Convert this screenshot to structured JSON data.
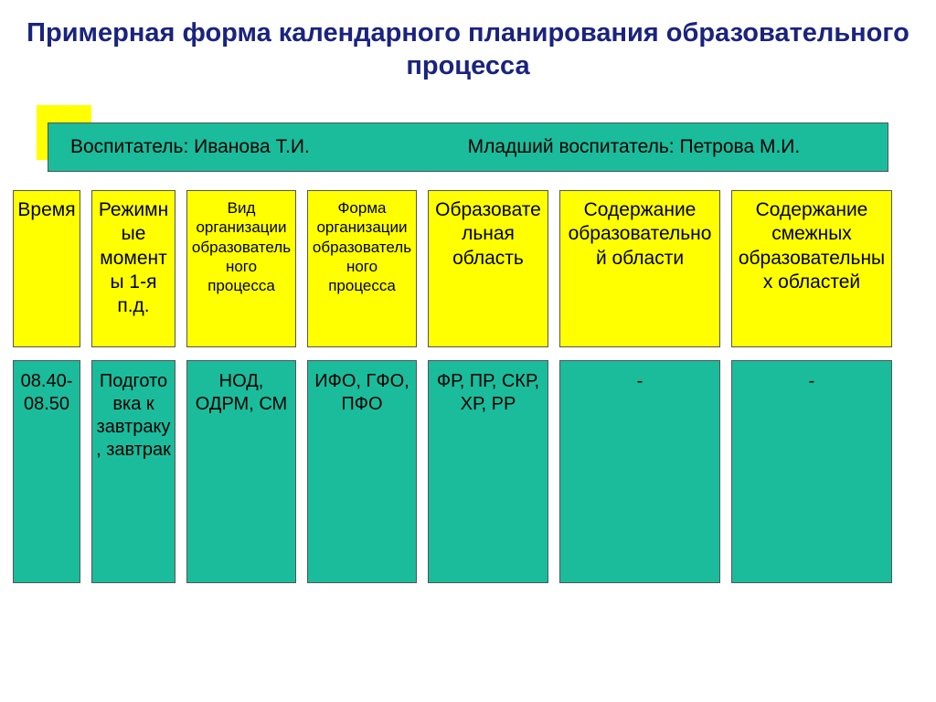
{
  "colors": {
    "title": "#1a237e",
    "teal": "#1abc9c",
    "yellow": "#ffff00",
    "border": "#555555",
    "background": "#ffffff"
  },
  "title": "Примерная форма календарного планирования образовательного процесса",
  "staff": {
    "left": "Воспитатель: Иванова Т.И.",
    "right": "Младший воспитатель: Петрова М.И."
  },
  "headers": [
    {
      "text": "Время",
      "fs": "fs-lg"
    },
    {
      "text": "Режимные моменты 1-я п.д.",
      "fs": "fs-lg"
    },
    {
      "text": "Вид организации образовательного процесса",
      "fs": "fs-sm"
    },
    {
      "text": "Форма организации образовательного процесса",
      "fs": "fs-sm"
    },
    {
      "text": "Образовательная область",
      "fs": "fs-lg"
    },
    {
      "text": "Содержание образовательной области",
      "fs": "fs-lg"
    },
    {
      "text": "Содержание смежных образовательных областей",
      "fs": "fs-lg"
    }
  ],
  "row": [
    {
      "text": "08.40-08.50",
      "fs": "fs-md"
    },
    {
      "text": "Подготовка к завтраку, завтрак",
      "fs": "fs-md"
    },
    {
      "text": "НОД, ОДРМ, СМ",
      "fs": "fs-md"
    },
    {
      "text": "ИФО, ГФО, ПФО",
      "fs": "fs-md"
    },
    {
      "text": "ФР, ПР, СКР, ХР, РР",
      "fs": "fs-md"
    },
    {
      "text": "-",
      "fs": "fs-md"
    },
    {
      "text": "-",
      "fs": "fs-md"
    }
  ]
}
